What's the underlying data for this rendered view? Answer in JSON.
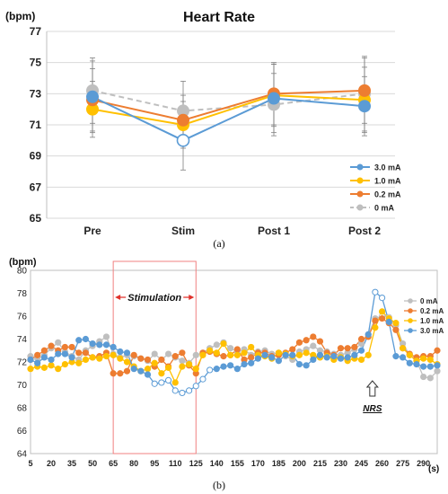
{
  "panel_a_label": "(a)",
  "panel_b_label": "(b)",
  "chart_data": [
    {
      "type": "line",
      "title": "Heart Rate",
      "ylabel": "(bpm)",
      "xlabel": "",
      "ylim": [
        65,
        77
      ],
      "yticks": [
        "65",
        "67",
        "69",
        "71",
        "73",
        "75",
        "77"
      ],
      "categories": [
        "Pre",
        "Stim",
        "Post 1",
        "Post 2"
      ],
      "legend_position": "bottom-right",
      "error_bars": true,
      "series": [
        {
          "name": "3.0 mA",
          "color": "#5b9bd5",
          "values": [
            72.8,
            70.0,
            72.7,
            72.2
          ],
          "errors": [
            2.3,
            1.9,
            2.2,
            1.9
          ],
          "line_style": "solid"
        },
        {
          "name": "1.0 mA",
          "color": "#ffc000",
          "values": [
            72.0,
            71.0,
            72.9,
            72.6
          ],
          "errors": [
            1.8,
            1.5,
            2.0,
            2.1
          ],
          "line_style": "solid"
        },
        {
          "name": "0.2 mA",
          "color": "#ed7d31",
          "values": [
            72.6,
            71.3,
            73.0,
            73.2
          ],
          "errors": [
            2.0,
            1.6,
            2.0,
            2.1
          ],
          "line_style": "solid"
        },
        {
          "name": "0 mA",
          "color": "#bfbfbf",
          "values": [
            73.2,
            71.9,
            72.3,
            73.0
          ],
          "errors": [
            2.1,
            1.9,
            2.0,
            2.4
          ],
          "line_style": "dashed"
        }
      ],
      "hollow_marker": {
        "series": "3.0 mA",
        "category": "Stim"
      }
    },
    {
      "type": "line",
      "title": "",
      "ylabel": "(bpm)",
      "xlabel": "(s)",
      "ylim": [
        64,
        80
      ],
      "yticks": [
        "64",
        "66",
        "68",
        "70",
        "72",
        "74",
        "76",
        "78",
        "80"
      ],
      "xlim": [
        5,
        300
      ],
      "xticks": [
        "5",
        "20",
        "35",
        "50",
        "65",
        "80",
        "95",
        "110",
        "125",
        "140",
        "155",
        "170",
        "185",
        "200",
        "215",
        "230",
        "245",
        "260",
        "275",
        "290"
      ],
      "legend_position": "right",
      "annotations": [
        {
          "text": "Stimulation",
          "x_range": [
            65,
            125
          ]
        },
        {
          "text": "NRS",
          "x": 253
        }
      ],
      "x": [
        5,
        10,
        15,
        20,
        25,
        30,
        35,
        40,
        45,
        50,
        55,
        60,
        65,
        70,
        75,
        80,
        85,
        90,
        95,
        100,
        105,
        110,
        115,
        120,
        125,
        130,
        135,
        140,
        145,
        150,
        155,
        160,
        165,
        170,
        175,
        180,
        185,
        190,
        195,
        200,
        205,
        210,
        215,
        220,
        225,
        230,
        235,
        240,
        245,
        250,
        255,
        260,
        265,
        270,
        275,
        280,
        285,
        290,
        295,
        300
      ],
      "series": [
        {
          "name": "0 mA",
          "color": "#bfbfbf",
          "values": [
            72.5,
            72.3,
            72.6,
            73.2,
            73.7,
            72.9,
            72.5,
            72.2,
            73.0,
            73.4,
            73.8,
            74.2,
            72.7,
            72.4,
            72.6,
            72.5,
            72.3,
            72.1,
            72.7,
            72.2,
            72.7,
            72.4,
            72.1,
            71.9,
            72.6,
            72.8,
            73.2,
            73.5,
            73.7,
            73.2,
            72.9,
            73.1,
            72.6,
            72.9,
            73.0,
            72.7,
            72.8,
            72.5,
            72.2,
            72.9,
            73.1,
            73.4,
            73.0,
            72.9,
            72.7,
            72.6,
            72.8,
            73.1,
            73.6,
            74.4,
            75.8,
            76.0,
            75.9,
            75.2,
            73.6,
            72.6,
            72.1,
            70.7,
            70.6,
            71.2
          ]
        },
        {
          "name": "0.2 mA",
          "color": "#ed7d31",
          "values": [
            72.2,
            72.6,
            73.0,
            73.4,
            73.0,
            73.3,
            73.3,
            72.8,
            72.8,
            72.4,
            72.5,
            72.8,
            71.0,
            71.0,
            71.2,
            72.6,
            72.3,
            72.2,
            71.6,
            72.2,
            71.6,
            72.5,
            72.8,
            71.7,
            71.0,
            72.8,
            72.9,
            72.7,
            72.5,
            72.6,
            73.1,
            72.2,
            72.4,
            72.8,
            72.8,
            72.5,
            72.6,
            72.8,
            73.1,
            73.7,
            73.9,
            74.2,
            73.8,
            72.8,
            72.6,
            73.2,
            73.2,
            73.3,
            74.0,
            74.2,
            75.6,
            75.8,
            75.4,
            74.8,
            73.2,
            72.7,
            72.4,
            72.5,
            72.5,
            73.0
          ]
        },
        {
          "name": "1.0 mA",
          "color": "#ffc000",
          "values": [
            71.4,
            71.6,
            71.5,
            71.7,
            71.4,
            71.8,
            72.0,
            71.9,
            72.2,
            72.4,
            72.3,
            72.5,
            72.6,
            72.3,
            72.0,
            71.6,
            71.2,
            71.4,
            71.9,
            71.0,
            71.5,
            70.2,
            71.6,
            71.8,
            71.4,
            72.6,
            73.0,
            72.8,
            73.6,
            72.6,
            72.6,
            72.8,
            73.3,
            72.6,
            72.5,
            72.3,
            72.8,
            72.7,
            72.5,
            72.6,
            72.8,
            72.6,
            72.4,
            72.5,
            72.2,
            72.4,
            72.1,
            72.3,
            72.2,
            72.6,
            75.0,
            76.4,
            75.8,
            75.4,
            73.2,
            72.6,
            72.1,
            72.3,
            72.2,
            71.8
          ]
        },
        {
          "name": "3.0 mA",
          "color": "#5b9bd5",
          "values": [
            72.2,
            71.9,
            72.4,
            72.2,
            72.7,
            72.7,
            72.4,
            73.9,
            74.0,
            73.6,
            73.5,
            73.5,
            73.3,
            72.9,
            72.8,
            71.4,
            71.2,
            70.9,
            70.1,
            70.2,
            70.4,
            69.5,
            69.3,
            69.5,
            69.9,
            70.5,
            71.3,
            71.4,
            71.6,
            71.7,
            71.4,
            71.8,
            71.9,
            72.3,
            72.6,
            72.4,
            72.1,
            72.6,
            72.6,
            71.8,
            71.7,
            72.2,
            72.6,
            72.4,
            72.5,
            72.3,
            72.4,
            72.6,
            73.0,
            74.4,
            78.1,
            77.6,
            75.5,
            72.5,
            72.4,
            71.9,
            71.8,
            71.6,
            71.6,
            71.7
          ]
        }
      ]
    }
  ]
}
